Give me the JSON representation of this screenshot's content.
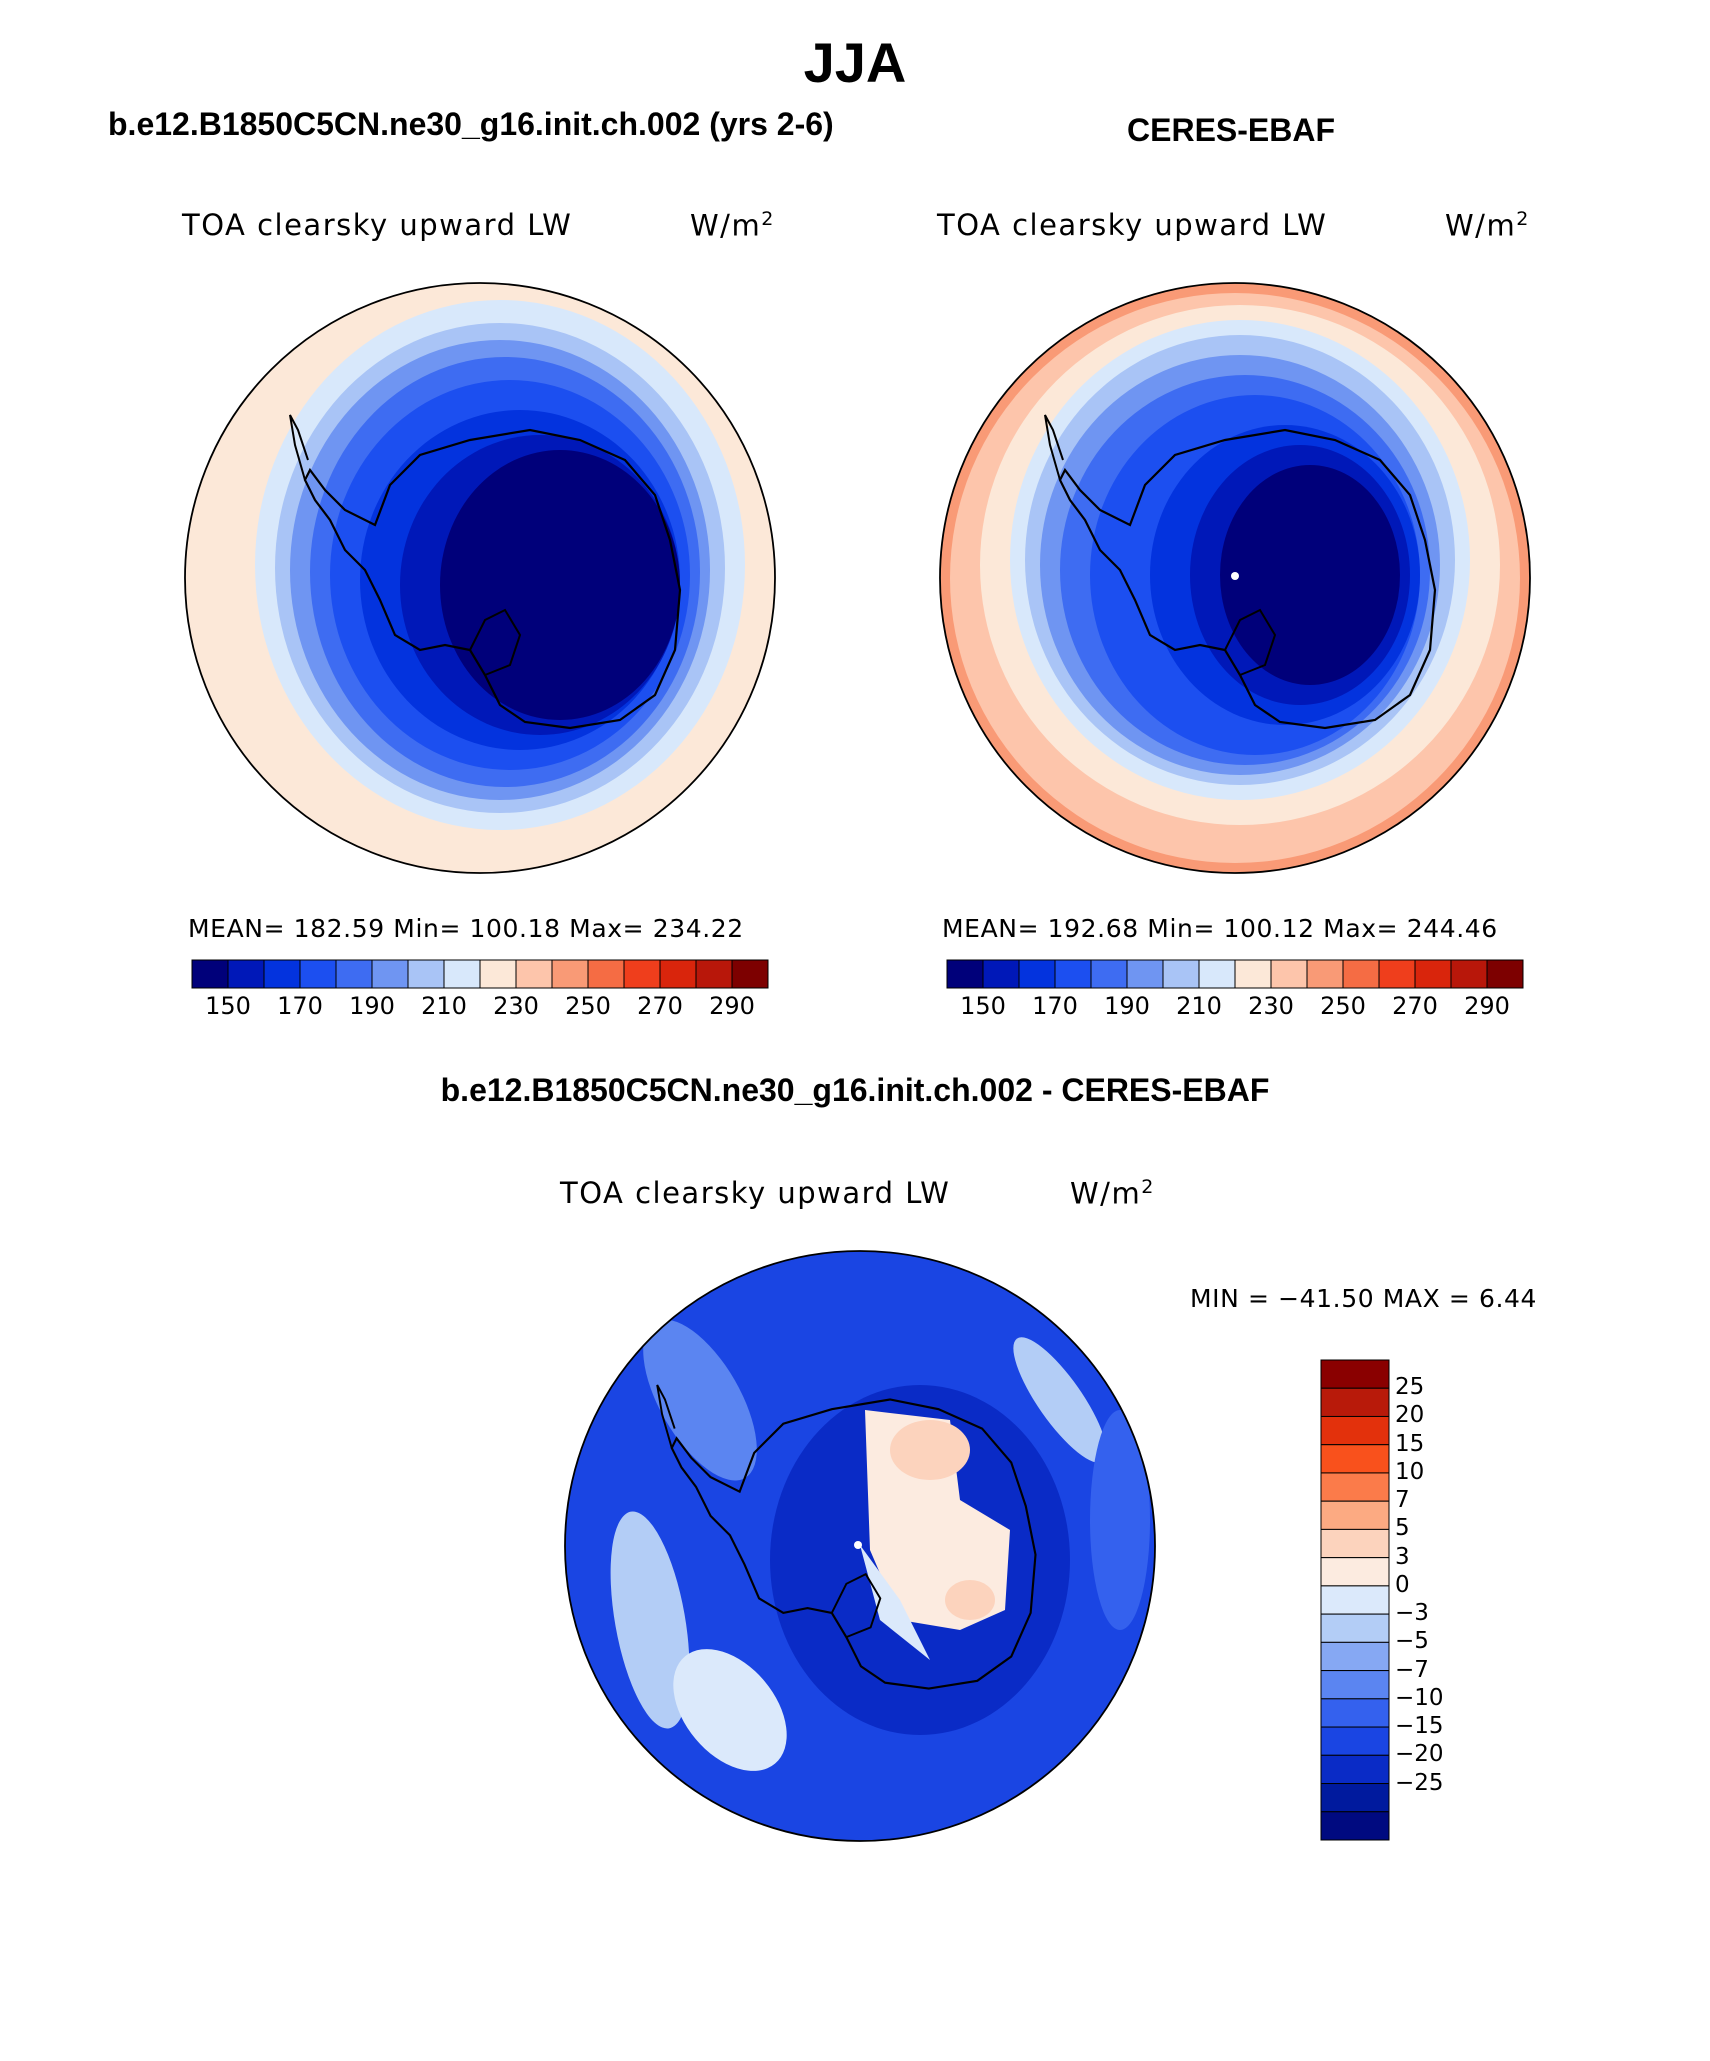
{
  "title": "JJA",
  "panels": [
    {
      "case_label": "b.e12.B1850C5CN.ne30_g16.init.ch.002 (yrs 2-6)",
      "variable": "TOA clearsky upward LW",
      "units": "W/m",
      "units_superscript": "2",
      "stats_text": "MEAN= 182.59   Min= 100.18   Max= 234.22"
    },
    {
      "case_label": "CERES-EBAF",
      "variable": "TOA clearsky upward LW",
      "units": "W/m",
      "units_superscript": "2",
      "stats_text": "MEAN= 192.68   Min= 100.12   Max= 244.46"
    }
  ],
  "difference": {
    "case_label": "b.e12.B1850C5CN.ne30_g16.init.ch.002 - CERES-EBAF",
    "variable": "TOA clearsky upward LW",
    "units": "W/m",
    "units_superscript": "2",
    "minmax_text": "MIN = −41.50 MAX =    6.44"
  },
  "colorbar_abs": {
    "colors": [
      "#00007a",
      "#0018b8",
      "#0333de",
      "#1c4ff0",
      "#3e6cf2",
      "#6f95f2",
      "#a9c4f6",
      "#d8e8fb",
      "#fce8d8",
      "#fdc5ab",
      "#f99a76",
      "#f56c44",
      "#ef3e1c",
      "#d9250c",
      "#b8170a",
      "#7d0000"
    ],
    "tick_labels": [
      "150",
      "170",
      "190",
      "210",
      "230",
      "250",
      "270",
      "290"
    ]
  },
  "colorbar_diff": {
    "colors_top_to_bottom": [
      "#8a0000",
      "#b81a0a",
      "#e3310c",
      "#f9511c",
      "#fb7b4a",
      "#fcaa82",
      "#fcd3bd",
      "#fcebe0",
      "#dbe9fb",
      "#b3cdf6",
      "#86a8f3",
      "#5b85f1",
      "#3461ee",
      "#1a45e3",
      "#0a2bc6",
      "#001a9e",
      "#000a80"
    ],
    "tick_labels": [
      "25",
      "20",
      "15",
      "10",
      "7",
      "5",
      "3",
      "0",
      "−3",
      "−5",
      "−7",
      "−10",
      "−15",
      "−20",
      "−25"
    ]
  },
  "colors": {
    "land_outline": "#000000",
    "text": "#000000",
    "background": "#ffffff"
  }
}
